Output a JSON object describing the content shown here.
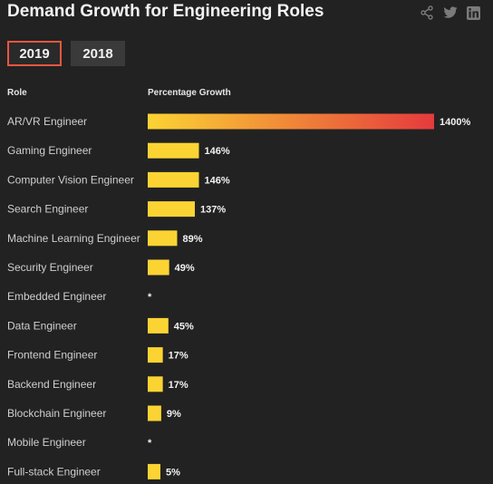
{
  "header": {
    "title": "Demand Growth for Engineering Roles"
  },
  "share": {
    "icons": [
      "share-icon",
      "twitter-icon",
      "linkedin-icon"
    ]
  },
  "tabs": [
    {
      "label": "2019",
      "active": true
    },
    {
      "label": "2018",
      "active": false
    }
  ],
  "columns": {
    "role": "Role",
    "growth": "Percentage Growth"
  },
  "colors": {
    "bar_start": "#fbd434",
    "bar_end": "#e53a3d",
    "accent": "#e8573f"
  },
  "chart_data": {
    "type": "bar",
    "orientation": "horizontal",
    "categories": [
      "AR/VR Engineer",
      "Gaming Engineer",
      "Computer Vision Engineer",
      "Search Engineer",
      "Machine Learning Engineer",
      "Security Engineer",
      "Embedded Engineer",
      "Data Engineer",
      "Frontend Engineer",
      "Backend Engineer",
      "Blockchain Engineer",
      "Mobile Engineer",
      "Full-stack Engineer"
    ],
    "values": [
      1400,
      146,
      146,
      137,
      89,
      49,
      null,
      45,
      17,
      17,
      9,
      null,
      5
    ],
    "labels": [
      "1400%",
      "146%",
      "146%",
      "137%",
      "89%",
      "49%",
      "*",
      "45%",
      "17%",
      "17%",
      "9%",
      "*",
      "5%"
    ],
    "xlabel": "Percentage Growth",
    "ylabel": "Role",
    "grid": false
  }
}
